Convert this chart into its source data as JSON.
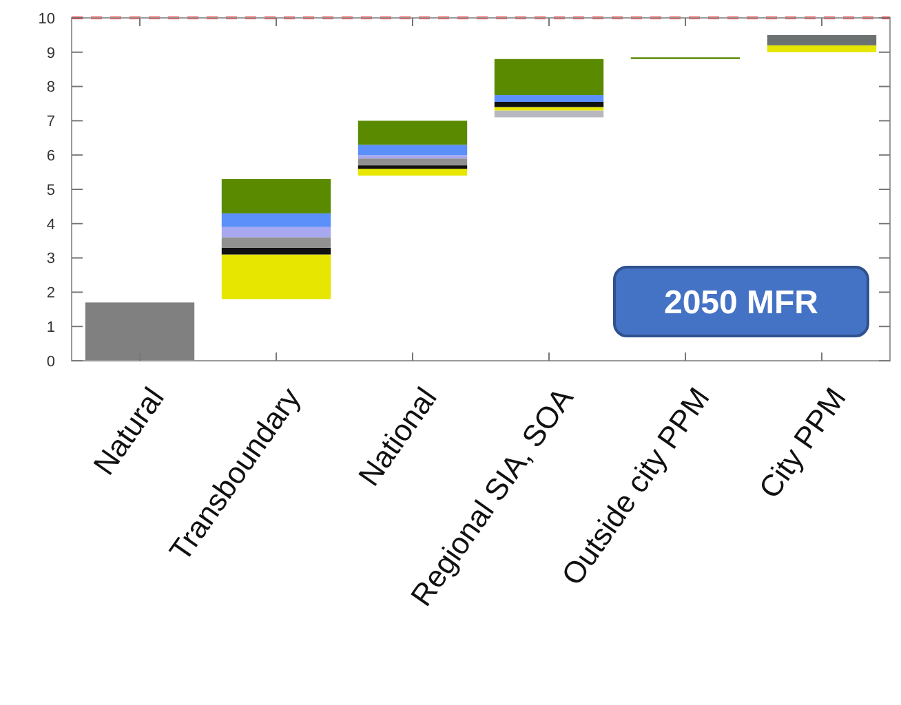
{
  "chart_data": {
    "type": "bar",
    "categories": [
      "Natural",
      "Transboundary",
      "National",
      "Regional SIA, SOA",
      "Outside city PPM",
      "City PPM"
    ],
    "series": [
      {
        "color": "#b8b8c0",
        "base": [
          null,
          null,
          null,
          7.1,
          null,
          null
        ],
        "values": [
          null,
          null,
          null,
          0.2,
          null,
          null
        ]
      },
      {
        "color": "#808080",
        "base": [
          0,
          null,
          null,
          null,
          null,
          null
        ],
        "values": [
          1.7,
          null,
          null,
          null,
          null,
          null
        ]
      },
      {
        "color": "#e6e600",
        "base": [
          null,
          1.8,
          5.4,
          7.3,
          null,
          9.0
        ],
        "values": [
          null,
          1.3,
          0.2,
          0.1,
          null,
          0.2
        ]
      },
      {
        "color": "#111111",
        "base": [
          null,
          3.1,
          5.6,
          7.4,
          null,
          null
        ],
        "values": [
          null,
          0.2,
          0.1,
          0.15,
          null,
          null
        ]
      },
      {
        "color": "#909090",
        "base": [
          null,
          3.3,
          5.7,
          null,
          null,
          null
        ],
        "values": [
          null,
          0.3,
          0.2,
          null,
          null,
          null
        ]
      },
      {
        "color": "#a8a8f0",
        "base": [
          null,
          3.6,
          5.9,
          null,
          null,
          null
        ],
        "values": [
          null,
          0.3,
          0.1,
          null,
          null,
          null
        ]
      },
      {
        "color": "#5b8ff9",
        "base": [
          null,
          3.9,
          6.0,
          7.55,
          null,
          null
        ],
        "values": [
          null,
          0.4,
          0.3,
          0.2,
          null,
          null
        ]
      },
      {
        "color": "#5a8a00",
        "base": [
          null,
          4.3,
          6.3,
          7.75,
          8.8,
          null
        ],
        "values": [
          null,
          1.0,
          0.7,
          1.05,
          0.05,
          null
        ]
      },
      {
        "color": "#6b7070",
        "base": [
          null,
          null,
          null,
          null,
          null,
          9.2
        ],
        "values": [
          null,
          null,
          null,
          null,
          null,
          0.3
        ]
      }
    ],
    "ylim": [
      0,
      10
    ],
    "yticks": [
      0,
      1,
      2,
      3,
      4,
      5,
      6,
      7,
      8,
      9,
      10
    ],
    "grid": false,
    "ref_lines": [
      {
        "axis": "y",
        "value": 10,
        "color": "#ff3030",
        "line_style": "dashed"
      }
    ],
    "annotations": [
      "2050 MFR"
    ]
  }
}
